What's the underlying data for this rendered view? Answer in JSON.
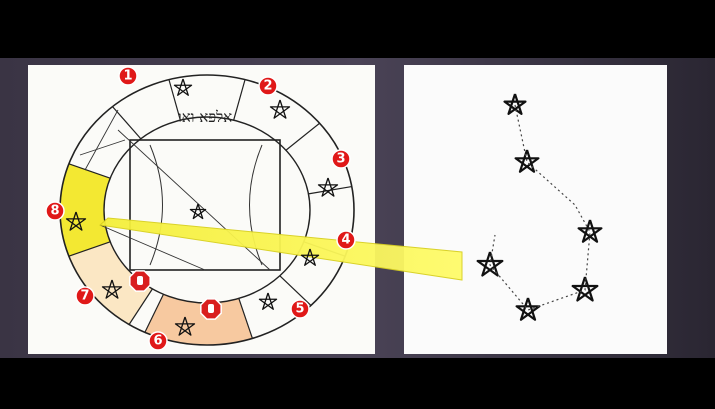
{
  "markers": [
    "1",
    "2",
    "3",
    "4",
    "5",
    "6",
    "7",
    "8"
  ],
  "wheel_text": "אלפא ואו"
}
